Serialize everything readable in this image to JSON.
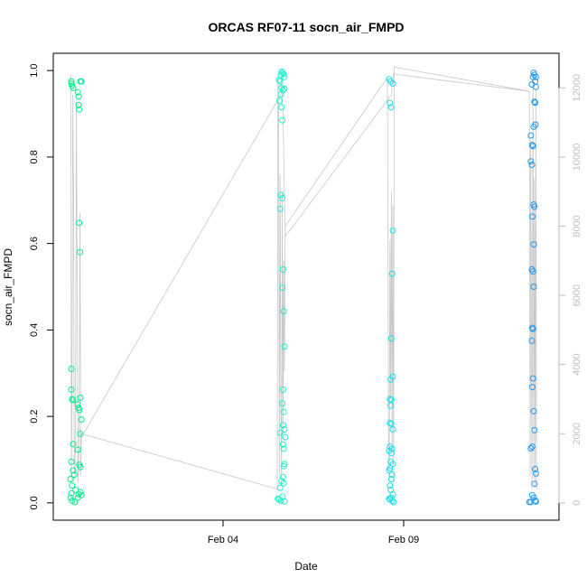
{
  "chart_data": {
    "type": "scatter",
    "title": "ORCAS RF07-11 socn_air_FMPD",
    "xlabel": "Date",
    "ylabel": "socn_air_FMPD",
    "x_ticks": [
      "Feb 04",
      "Feb 09"
    ],
    "y_ticks": [
      "0.0",
      "0.2",
      "0.4",
      "0.6",
      "0.8",
      "1.0"
    ],
    "y2_ticks": [
      "0",
      "2000",
      "4000",
      "6000",
      "8000",
      "10000",
      "12000"
    ],
    "xlim_days": [
      30.3,
      44.3
    ],
    "x_tick_days": [
      35,
      40
    ],
    "ylim": [
      -0.04,
      1.04
    ],
    "y2lim": [
      -500,
      13000
    ],
    "y2_color": "#bebebe",
    "line_color": "#c8c8c8",
    "grid": false,
    "series": [
      {
        "color": "#00ee88",
        "points": [
          [
            30.8,
            0.975
          ],
          [
            30.8,
            0.97
          ],
          [
            30.82,
            0.965
          ],
          [
            30.85,
            0.96
          ],
          [
            30.98,
            0.95
          ],
          [
            31.0,
            0.94
          ],
          [
            31.0,
            0.92
          ],
          [
            31.02,
            0.91
          ],
          [
            31.05,
            0.975
          ],
          [
            31.08,
            0.975
          ],
          [
            31.02,
            0.648
          ],
          [
            31.04,
            0.58
          ],
          [
            30.8,
            0.31
          ],
          [
            30.8,
            0.262
          ],
          [
            30.82,
            0.24
          ],
          [
            30.85,
            0.238
          ],
          [
            31.05,
            0.243
          ],
          [
            30.98,
            0.228
          ],
          [
            31.0,
            0.22
          ],
          [
            31.02,
            0.215
          ],
          [
            31.08,
            0.193
          ],
          [
            31.05,
            0.16
          ],
          [
            30.85,
            0.136
          ],
          [
            30.98,
            0.123
          ],
          [
            30.8,
            0.095
          ],
          [
            30.85,
            0.075
          ],
          [
            30.88,
            0.065
          ],
          [
            31.02,
            0.088
          ],
          [
            31.05,
            0.083
          ],
          [
            30.78,
            0.055
          ],
          [
            30.82,
            0.04
          ],
          [
            30.8,
            0.022
          ],
          [
            30.78,
            0.012
          ],
          [
            30.82,
            0.005
          ],
          [
            30.9,
            0.002
          ],
          [
            30.98,
            0.012
          ],
          [
            31.05,
            0.025
          ],
          [
            31.08,
            0.018
          ],
          [
            31.0,
            0.02
          ],
          [
            30.92,
            0.03
          ]
        ]
      },
      {
        "color": "#22eecc",
        "points": [
          [
            36.6,
            0.99
          ],
          [
            36.62,
            0.998
          ],
          [
            36.65,
            0.995
          ],
          [
            36.68,
            0.992
          ],
          [
            36.7,
            0.985
          ],
          [
            36.55,
            0.978
          ],
          [
            36.58,
            0.975
          ],
          [
            36.62,
            0.96
          ],
          [
            36.66,
            0.955
          ],
          [
            36.7,
            0.958
          ],
          [
            36.6,
            0.945
          ],
          [
            36.56,
            0.93
          ],
          [
            36.62,
            0.915
          ],
          [
            36.64,
            0.885
          ],
          [
            36.6,
            0.712
          ],
          [
            36.64,
            0.705
          ],
          [
            36.58,
            0.68
          ],
          [
            36.66,
            0.54
          ],
          [
            36.64,
            0.498
          ],
          [
            36.68,
            0.443
          ],
          [
            36.7,
            0.362
          ],
          [
            36.66,
            0.262
          ],
          [
            36.64,
            0.23
          ],
          [
            36.68,
            0.21
          ],
          [
            36.66,
            0.18
          ],
          [
            36.58,
            0.162
          ],
          [
            36.7,
            0.17
          ],
          [
            36.72,
            0.152
          ],
          [
            36.66,
            0.135
          ],
          [
            36.68,
            0.125
          ],
          [
            36.7,
            0.09
          ],
          [
            36.68,
            0.085
          ],
          [
            36.66,
            0.06
          ],
          [
            36.62,
            0.05
          ],
          [
            36.58,
            0.035
          ],
          [
            36.68,
            0.045
          ],
          [
            36.65,
            0.015
          ],
          [
            36.6,
            0.005
          ],
          [
            36.55,
            0.008
          ],
          [
            36.52,
            0.01
          ],
          [
            36.7,
            0.003
          ]
        ]
      },
      {
        "color": "#22ddee",
        "points": [
          [
            39.6,
            0.98
          ],
          [
            39.64,
            0.975
          ],
          [
            39.7,
            0.97
          ],
          [
            39.62,
            0.925
          ],
          [
            39.65,
            0.915
          ],
          [
            39.7,
            0.63
          ],
          [
            39.68,
            0.53
          ],
          [
            39.66,
            0.38
          ],
          [
            39.7,
            0.292
          ],
          [
            39.64,
            0.285
          ],
          [
            39.62,
            0.24
          ],
          [
            39.66,
            0.238
          ],
          [
            39.64,
            0.225
          ],
          [
            39.62,
            0.185
          ],
          [
            39.66,
            0.183
          ],
          [
            39.7,
            0.17
          ],
          [
            39.68,
            0.125
          ],
          [
            39.62,
            0.13
          ],
          [
            39.6,
            0.12
          ],
          [
            39.66,
            0.115
          ],
          [
            39.64,
            0.095
          ],
          [
            39.7,
            0.09
          ],
          [
            39.62,
            0.08
          ],
          [
            39.6,
            0.075
          ],
          [
            39.68,
            0.065
          ],
          [
            39.66,
            0.055
          ],
          [
            39.62,
            0.04
          ],
          [
            39.64,
            0.03
          ],
          [
            39.7,
            0.02
          ],
          [
            39.66,
            0.012
          ],
          [
            39.62,
            0.008
          ],
          [
            39.68,
            0.005
          ],
          [
            39.72,
            0.002
          ],
          [
            39.6,
            0.01
          ]
        ]
      },
      {
        "color": "#2299ee",
        "points": [
          [
            43.6,
            0.995
          ],
          [
            43.62,
            0.99
          ],
          [
            43.58,
            0.985
          ],
          [
            43.66,
            0.985
          ],
          [
            43.64,
            0.975
          ],
          [
            43.55,
            0.968
          ],
          [
            43.66,
            0.962
          ],
          [
            43.62,
            0.928
          ],
          [
            43.64,
            0.926
          ],
          [
            43.65,
            0.875
          ],
          [
            43.6,
            0.87
          ],
          [
            43.52,
            0.85
          ],
          [
            43.56,
            0.828
          ],
          [
            43.58,
            0.825
          ],
          [
            43.52,
            0.79
          ],
          [
            43.55,
            0.782
          ],
          [
            43.6,
            0.69
          ],
          [
            43.62,
            0.685
          ],
          [
            43.56,
            0.662
          ],
          [
            43.6,
            0.598
          ],
          [
            43.55,
            0.54
          ],
          [
            43.58,
            0.535
          ],
          [
            43.6,
            0.5
          ],
          [
            43.56,
            0.405
          ],
          [
            43.58,
            0.402
          ],
          [
            43.55,
            0.375
          ],
          [
            43.58,
            0.288
          ],
          [
            43.56,
            0.268
          ],
          [
            43.6,
            0.212
          ],
          [
            43.62,
            0.168
          ],
          [
            43.56,
            0.13
          ],
          [
            43.52,
            0.126
          ],
          [
            43.64,
            0.078
          ],
          [
            43.66,
            0.068
          ],
          [
            43.62,
            0.044
          ],
          [
            43.56,
            0.018
          ],
          [
            43.6,
            0.012
          ],
          [
            43.64,
            0.005
          ],
          [
            43.52,
            0.002
          ],
          [
            43.48,
            0.002
          ],
          [
            43.66,
            0.003
          ]
        ]
      }
    ],
    "altitude_outline": [
      [
        30.78,
        12400
      ],
      [
        30.79,
        10000
      ],
      [
        30.8,
        600
      ],
      [
        30.82,
        4000
      ],
      [
        30.84,
        11800
      ],
      [
        30.86,
        9000
      ],
      [
        30.88,
        1200
      ],
      [
        30.9,
        700
      ],
      [
        30.92,
        4200
      ],
      [
        30.94,
        11600
      ],
      [
        30.96,
        6000
      ],
      [
        30.98,
        600
      ],
      [
        31.0,
        900
      ],
      [
        31.02,
        3200
      ],
      [
        31.04,
        8400
      ],
      [
        31.06,
        800
      ],
      [
        31.08,
        2000
      ],
      [
        36.5,
        400
      ],
      [
        36.52,
        12400
      ],
      [
        36.54,
        11000
      ],
      [
        36.56,
        800
      ],
      [
        36.58,
        9500
      ],
      [
        36.6,
        3000
      ],
      [
        36.62,
        500
      ],
      [
        36.64,
        9000
      ],
      [
        36.66,
        2000
      ],
      [
        36.68,
        7000
      ],
      [
        36.7,
        3800
      ],
      [
        36.72,
        8000
      ],
      [
        39.55,
        12300
      ],
      [
        39.58,
        2000
      ],
      [
        39.6,
        600
      ],
      [
        39.62,
        7600
      ],
      [
        39.64,
        3000
      ],
      [
        39.66,
        9000
      ],
      [
        39.68,
        1500
      ],
      [
        39.7,
        8600
      ],
      [
        39.72,
        500
      ],
      [
        39.74,
        12600
      ],
      [
        43.48,
        11900
      ],
      [
        43.5,
        800
      ],
      [
        43.52,
        10500
      ],
      [
        43.55,
        400
      ],
      [
        43.58,
        12300
      ],
      [
        43.6,
        700
      ],
      [
        43.62,
        9400
      ],
      [
        43.64,
        500
      ],
      [
        43.66,
        12000
      ],
      [
        43.68,
        400
      ]
    ],
    "altitude_ferry": [
      [
        31.06,
        2100
      ],
      [
        31.08,
        1900
      ],
      [
        36.6,
        11800
      ],
      [
        36.62,
        12200
      ],
      [
        36.66,
        11200
      ],
      [
        36.72,
        7700
      ],
      [
        39.66,
        11800
      ],
      [
        39.7,
        12300
      ],
      [
        39.72,
        12400
      ],
      [
        43.48,
        11900
      ]
    ]
  }
}
